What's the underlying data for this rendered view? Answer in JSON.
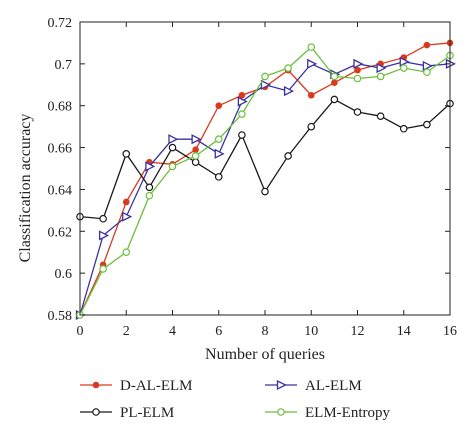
{
  "chart_data": {
    "type": "line",
    "title": "",
    "xlabel": "Number of queries",
    "ylabel": "Classification accuracy",
    "xlim": [
      0,
      16
    ],
    "ylim": [
      0.58,
      0.72
    ],
    "xticks": [
      0,
      2,
      4,
      6,
      8,
      10,
      12,
      14,
      16
    ],
    "yticks": [
      0.58,
      0.6,
      0.62,
      0.64,
      0.66,
      0.68,
      0.7,
      0.72
    ],
    "ytick_labels": [
      "0.58",
      "0.6",
      "0.62",
      "0.64",
      "0.66",
      "0.68",
      "0.7",
      "0.72"
    ],
    "x": [
      0,
      1,
      2,
      3,
      4,
      5,
      6,
      7,
      8,
      9,
      10,
      11,
      12,
      13,
      14,
      15,
      16
    ],
    "legend_position": "bottom",
    "grid": false,
    "series": [
      {
        "name": "D-AL-ELM",
        "color": "#d93a1e",
        "marker": "dot",
        "values": [
          0.58,
          0.604,
          0.634,
          0.653,
          0.652,
          0.659,
          0.68,
          0.685,
          0.689,
          0.697,
          0.685,
          0.691,
          0.697,
          0.7,
          0.703,
          0.709,
          0.71
        ]
      },
      {
        "name": "AL-ELM",
        "color": "#3a32a0",
        "marker": "triangle-right",
        "values": [
          0.58,
          0.618,
          0.627,
          0.651,
          0.664,
          0.664,
          0.657,
          0.682,
          0.69,
          0.687,
          0.7,
          0.695,
          0.7,
          0.698,
          0.701,
          0.699,
          0.7
        ]
      },
      {
        "name": "PL-ELM",
        "color": "#1a1a1a",
        "marker": "circle-open",
        "values": [
          0.627,
          0.626,
          0.657,
          0.641,
          0.66,
          0.653,
          0.646,
          0.666,
          0.639,
          0.656,
          0.67,
          0.683,
          0.677,
          0.675,
          0.669,
          0.671,
          0.681
        ]
      },
      {
        "name": "ELM-Entropy",
        "color": "#6cbf3c",
        "marker": "circle-open",
        "values": [
          0.58,
          0.602,
          0.61,
          0.637,
          0.651,
          0.656,
          0.664,
          0.676,
          0.694,
          0.698,
          0.708,
          0.694,
          0.693,
          0.694,
          0.698,
          0.696,
          0.704
        ]
      }
    ]
  }
}
